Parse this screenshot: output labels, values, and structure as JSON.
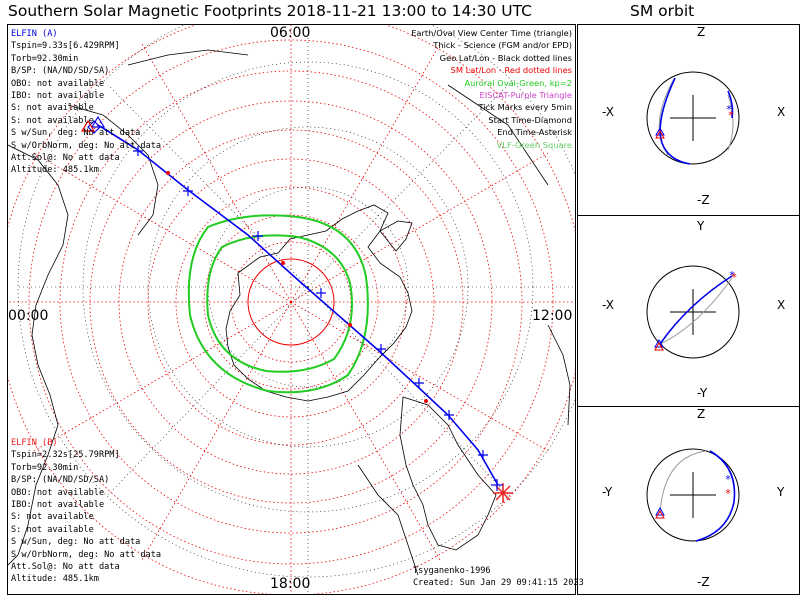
{
  "title": "Southern Solar Magnetic Footprints 2018-11-21 13:00 to 14:30 UTC",
  "orbit_title": "SM orbit",
  "time_labels": {
    "top": "06:00",
    "left": "00:00",
    "right": "12:00",
    "bottom": "18:00"
  },
  "elfin_a": {
    "name": "ELFIN (A)",
    "color": "#0000dd",
    "lines": [
      "Tspin=9.33s[6.429RPM]",
      "Torb=92.30min",
      "B/SP: (NA/ND/SD/SA)",
      "OBO: not available",
      "IBO: not available",
      "S: not available",
      "S: not available",
      "S w/Sun, deg: No att data",
      "S w/OrbNorm, deg: No att data",
      "Att.Sol@: No att data",
      "Altitude: 485.1km"
    ]
  },
  "elfin_b": {
    "name": "ELFIN (B)",
    "color": "#ee2020",
    "lines": [
      "Tspin=2.32s[25.79RPM]",
      "Torb=92.30min",
      "B/SP: (NA/ND/SD/SA)",
      "OBO: not available",
      "IBO: not available",
      "S: not available",
      "S: not available",
      "S w/Sun, deg: No att data",
      "S w/OrbNorm, deg: No att data",
      "Att.Sol@: No att data",
      "Altitude: 485.1km"
    ]
  },
  "legend": [
    {
      "text": "Earth/Oval View Center Time (triangle)",
      "color": "#000000"
    },
    {
      "text": "Thick - Science (FGM and/or EPD)",
      "color": "#000000"
    },
    {
      "text": "Geo Lat/Lon - Black dotted lines",
      "color": "#000000"
    },
    {
      "text": "SM Lat/Lon - Red dotted lines",
      "color": "#ee0000"
    },
    {
      "text": "Auroral Oval-Green, kp=2",
      "color": "#22cc22"
    },
    {
      "text": "EISCAT-Purple Triangle",
      "color": "#cc44cc"
    },
    {
      "text": "Tick Marks every 5min",
      "color": "#000000"
    },
    {
      "text": "Start Time-Diamond",
      "color": "#000000"
    },
    {
      "text": "End Time-Asterisk",
      "color": "#000000"
    },
    {
      "text": "VLF-Green Square",
      "color": "#66cc66"
    }
  ],
  "footer": {
    "model": "Tsyganenko-1996",
    "created": "Created: Sun Jan 29 09:41:15 2023"
  },
  "orbit_panels": [
    {
      "top": "Z",
      "bottom": "-Z",
      "left": "-X",
      "right": "X"
    },
    {
      "top": "Y",
      "bottom": "-Y",
      "left": "-X",
      "right": "X"
    },
    {
      "top": "Z",
      "bottom": "-Z",
      "left": "-Y",
      "right": "Y"
    }
  ],
  "colors": {
    "track": "#0000ee",
    "sm_grid": "#ee0000",
    "auroral_oval": "#22cc22",
    "coast": "#000000"
  }
}
